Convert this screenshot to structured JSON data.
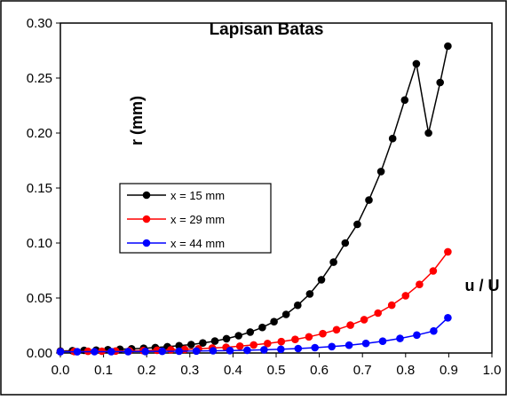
{
  "chart_data": {
    "type": "line",
    "title": "Lapisan Batas",
    "xlabel": "u / U",
    "ylabel": "r (mm)",
    "xlim": [
      0.0,
      1.0
    ],
    "ylim": [
      0.0,
      0.3
    ],
    "x_ticks": [
      "0.0",
      "0.1",
      "0.2",
      "0.3",
      "0.4",
      "0.5",
      "0.6",
      "0.7",
      "0.8",
      "0.9",
      "1.0"
    ],
    "y_ticks": [
      "0.00",
      "0.05",
      "0.10",
      "0.15",
      "0.20",
      "0.25",
      "0.30"
    ],
    "grid": false,
    "legend_position": "middle-left",
    "colors": {
      "series1": "#000000",
      "series2": "#ff0000",
      "series3": "#0000ff"
    },
    "series": [
      {
        "name": "x = 15 mm",
        "color": "#000000",
        "x": [
          0.0,
          0.028,
          0.055,
          0.083,
          0.11,
          0.138,
          0.165,
          0.193,
          0.22,
          0.248,
          0.275,
          0.303,
          0.33,
          0.358,
          0.385,
          0.413,
          0.44,
          0.468,
          0.495,
          0.523,
          0.55,
          0.578,
          0.605,
          0.633,
          0.66,
          0.688,
          0.715,
          0.743,
          0.77,
          0.798,
          0.825,
          0.853,
          0.88,
          0.898
        ],
        "y": [
          0.0018,
          0.0021,
          0.0024,
          0.0026,
          0.003,
          0.0034,
          0.0038,
          0.0043,
          0.0049,
          0.0057,
          0.0066,
          0.0077,
          0.0091,
          0.0108,
          0.013,
          0.0157,
          0.019,
          0.0232,
          0.0285,
          0.0351,
          0.0434,
          0.0537,
          0.0666,
          0.0826,
          0.1,
          0.117,
          0.139,
          0.165,
          0.195,
          0.23,
          0.263,
          0.2,
          0.246,
          0.279
        ]
      },
      {
        "name": "x = 29 mm",
        "color": "#ff0000",
        "x": [
          0.0,
          0.032,
          0.064,
          0.096,
          0.128,
          0.16,
          0.192,
          0.224,
          0.256,
          0.288,
          0.32,
          0.352,
          0.384,
          0.416,
          0.448,
          0.48,
          0.512,
          0.544,
          0.576,
          0.608,
          0.64,
          0.672,
          0.704,
          0.736,
          0.768,
          0.8,
          0.832,
          0.864,
          0.898
        ],
        "y": [
          0.0013,
          0.0014,
          0.0015,
          0.0016,
          0.0018,
          0.002,
          0.0022,
          0.0025,
          0.0029,
          0.0033,
          0.0038,
          0.0045,
          0.0052,
          0.0062,
          0.0073,
          0.0086,
          0.0103,
          0.0123,
          0.0147,
          0.0176,
          0.0211,
          0.0253,
          0.0303,
          0.0363,
          0.0435,
          0.0521,
          0.0623,
          0.0746,
          0.092
        ]
      },
      {
        "name": "x = 44 mm",
        "color": "#0000ff",
        "x": [
          0.0,
          0.039,
          0.079,
          0.118,
          0.157,
          0.197,
          0.236,
          0.275,
          0.315,
          0.354,
          0.393,
          0.433,
          0.472,
          0.511,
          0.551,
          0.59,
          0.629,
          0.669,
          0.708,
          0.747,
          0.787,
          0.826,
          0.865,
          0.898
        ],
        "y": [
          0.0011,
          0.0011,
          0.0012,
          0.0012,
          0.0013,
          0.0014,
          0.0015,
          0.0016,
          0.0018,
          0.002,
          0.0022,
          0.0025,
          0.0029,
          0.0034,
          0.004,
          0.0048,
          0.0058,
          0.0071,
          0.0087,
          0.0107,
          0.0132,
          0.0163,
          0.02,
          0.032
        ]
      }
    ]
  }
}
